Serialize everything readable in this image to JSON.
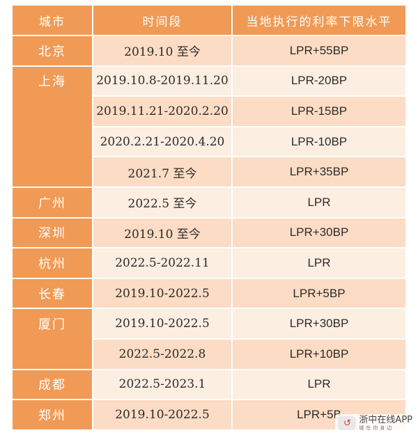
{
  "header": {
    "city": "城市",
    "period": "时间段",
    "rate": "当地执行的利率下限水平"
  },
  "rows": [
    {
      "city": "北京",
      "period": "2019.10 至今",
      "rate": "LPR+55BP"
    },
    {
      "city": "上海",
      "period": "2019.10.8-2019.11.20",
      "rate": "LPR-20BP"
    },
    {
      "city": "",
      "period": "2019.11.21-2020.2.20",
      "rate": "LPR-15BP"
    },
    {
      "city": "",
      "period": "2020.2.21-2020.4.20",
      "rate": "LPR-10BP"
    },
    {
      "city": "",
      "period": "2021.7 至今",
      "rate": "LPR+35BP"
    },
    {
      "city": "广州",
      "period": "2022.5 至今",
      "rate": "LPR"
    },
    {
      "city": "深圳",
      "period": "2019.10 至今",
      "rate": "LPR+30BP"
    },
    {
      "city": "杭州",
      "period": "2022.5-2022.11",
      "rate": "LPR"
    },
    {
      "city": "长春",
      "period": "2019.10-2022.5",
      "rate": "LPR+5BP"
    },
    {
      "city": "厦门",
      "period": "2019.10-2022.5",
      "rate": "LPR+30BP"
    },
    {
      "city": "",
      "period": "2022.5-2022.8",
      "rate": "LPR+10BP"
    },
    {
      "city": "成都",
      "period": "2022.5-2023.1",
      "rate": "LPR"
    },
    {
      "city": "郑州",
      "period": "2019.10-2022.5",
      "rate": "LPR+5B"
    }
  ],
  "watermark": {
    "logo_glyph": "↺",
    "title": "浙中在线APP",
    "subtitle": "城在你身边"
  }
}
